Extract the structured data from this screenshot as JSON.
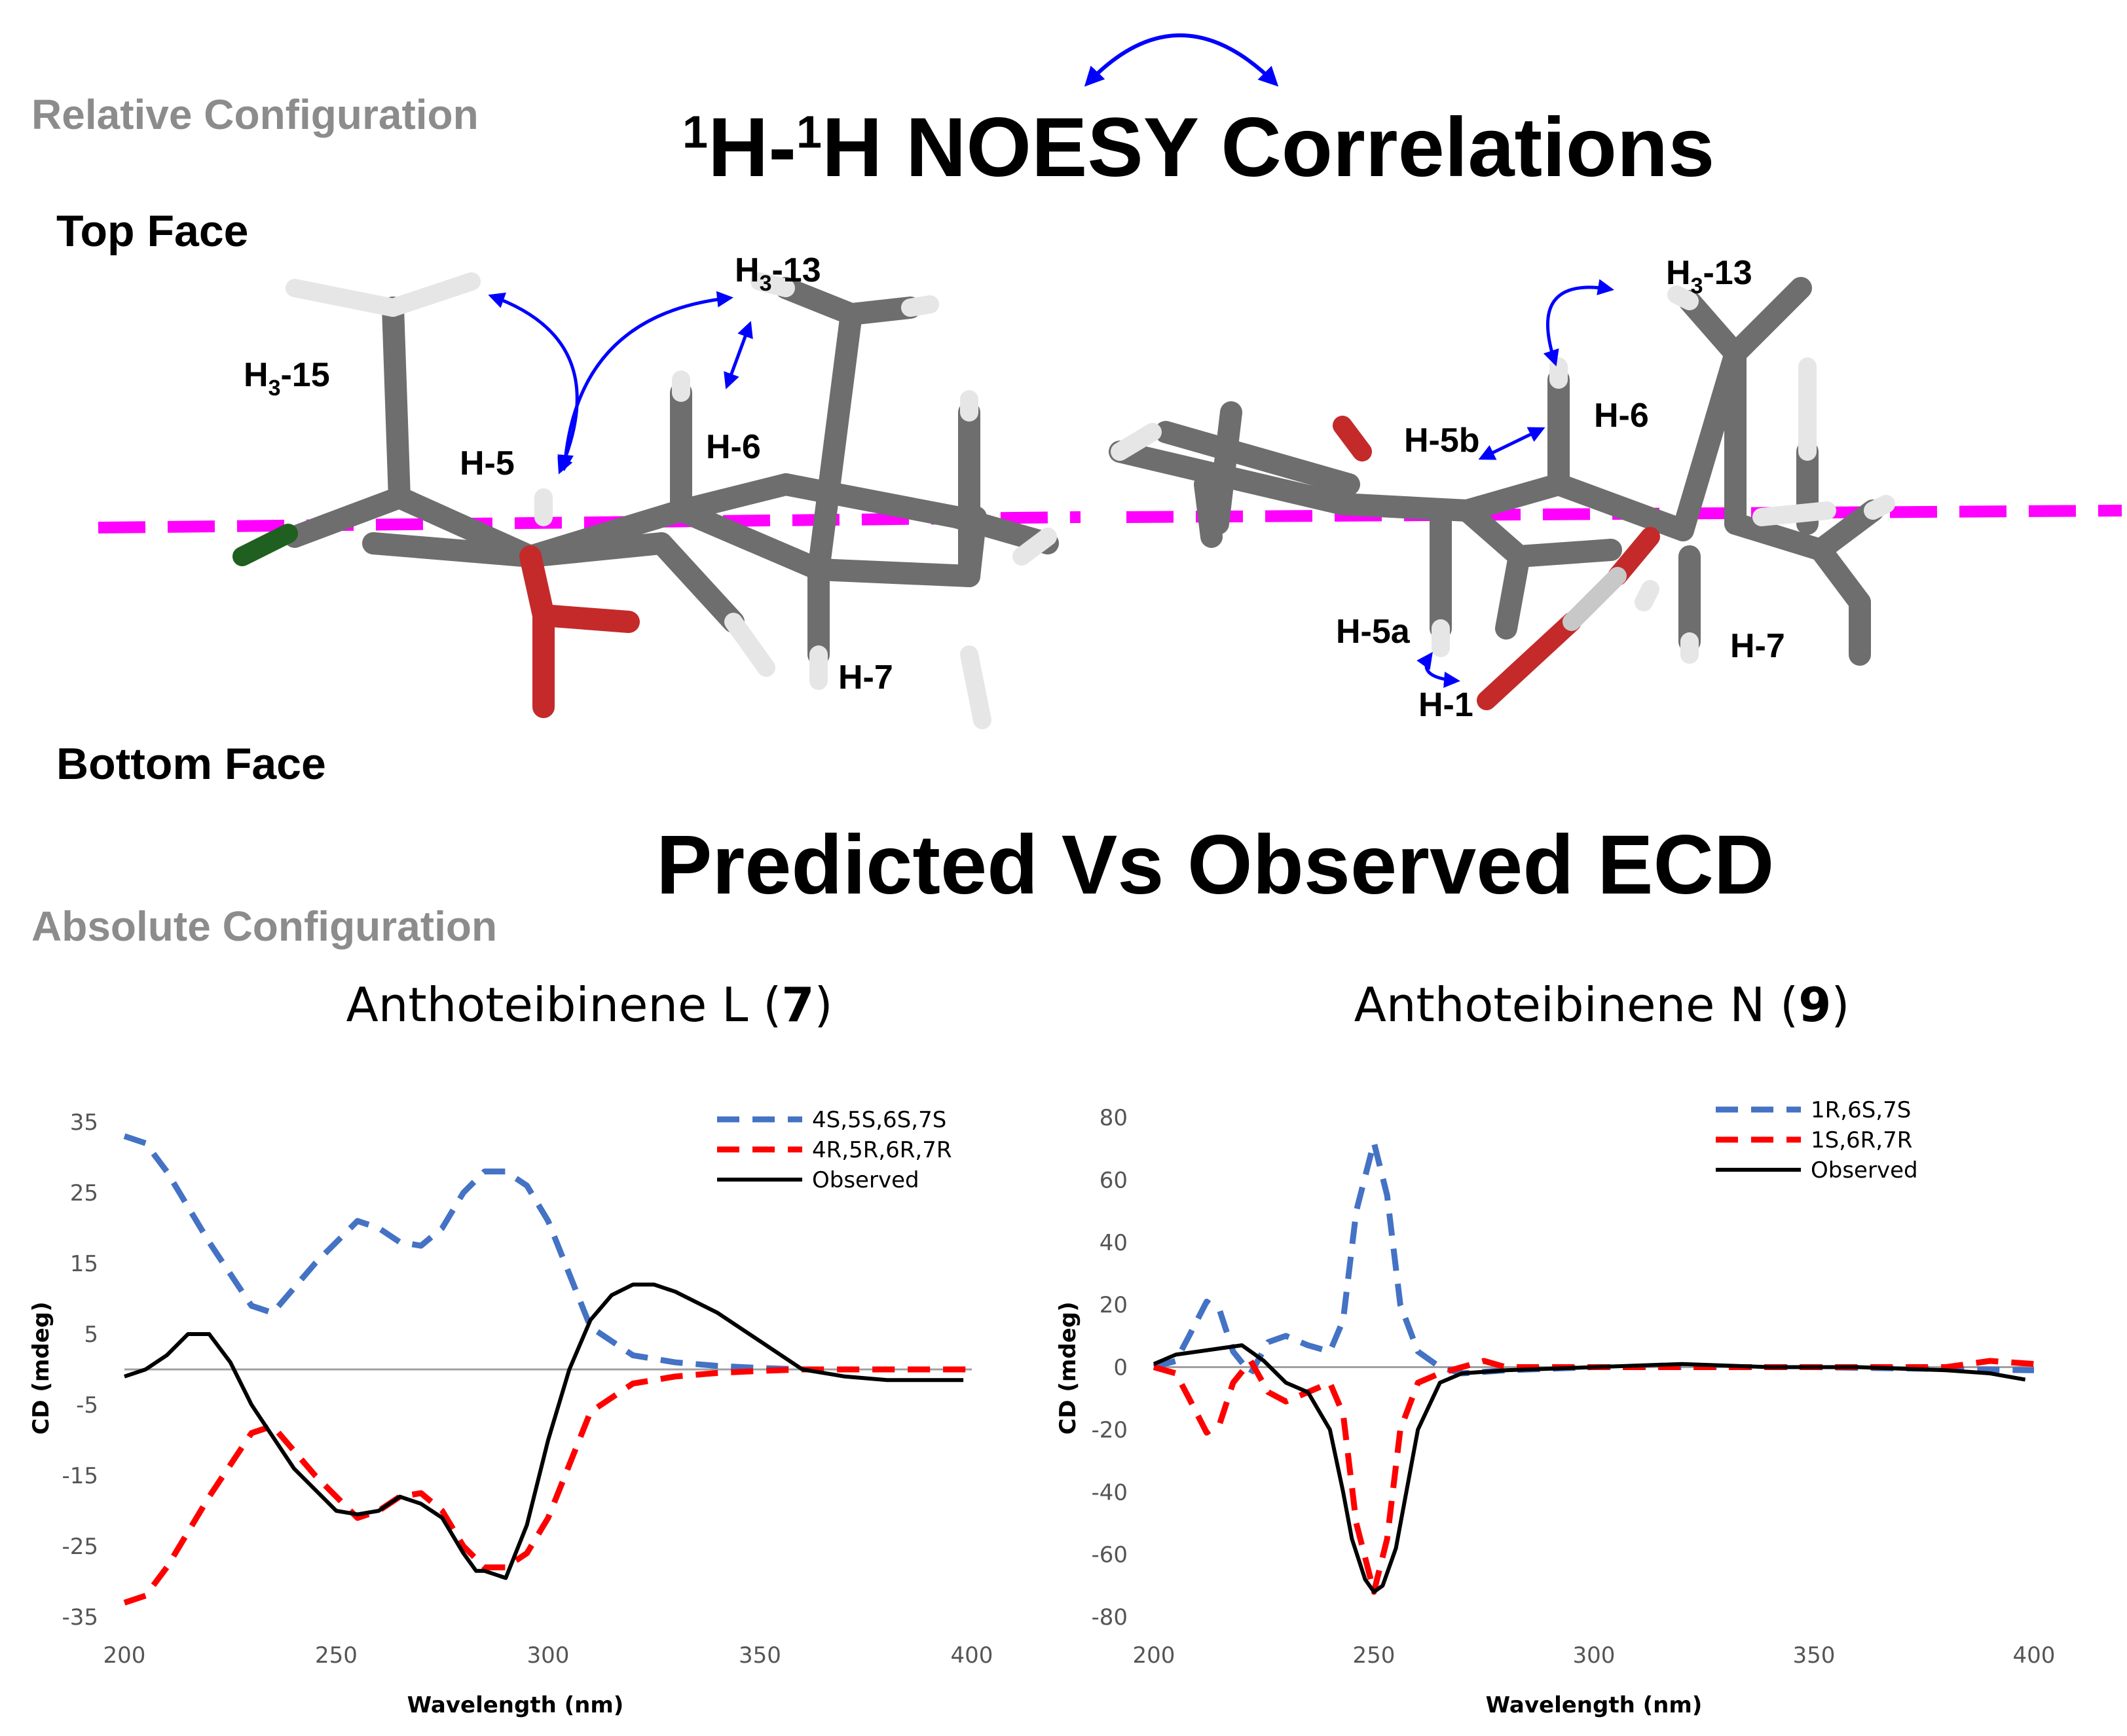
{
  "headings": {
    "relative": "Relative Configuration",
    "noesy_sup1": "1",
    "noesy_part1": "H-",
    "noesy_sup2": "1",
    "noesy_part2": "H NOESY Correlations",
    "top_face": "Top Face",
    "bottom_face": "Bottom Face",
    "ecd_title": "Predicted Vs Observed ECD",
    "absolute": "Absolute Configuration"
  },
  "labels_left": {
    "h3_15": [
      "H",
      "3",
      "-15"
    ],
    "h3_13": [
      "H",
      "3",
      "-13"
    ],
    "h5": "H-5",
    "h6": "H-6",
    "h7": "H-7"
  },
  "labels_right": {
    "h3_13": [
      "H",
      "3",
      "-13"
    ],
    "h6": "H-6",
    "h5b": "H-5b",
    "h5a": "H-5a",
    "h1": "H-1",
    "h7": "H-7"
  },
  "colors": {
    "blue_series": "#4472C4",
    "red_series": "#FF0000",
    "observed": "#000000",
    "noe_arrow": "#0000FF",
    "plane": "#FF00FF",
    "carbon": "#707070",
    "hydrogen": "#E8E8E8",
    "oxygen": "#CC2222",
    "headings_grey": "#8C8C8C"
  },
  "chart_data": [
    {
      "type": "line",
      "title_prefix": "Anthoteibinene  L (",
      "title_bold": "7",
      "title_suffix": ")",
      "xlabel": "Wavelength (nm)",
      "ylabel": "CD (mdeg)",
      "xlim": [
        200,
        400
      ],
      "ylim": [
        -35,
        35
      ],
      "xticks": [
        200,
        250,
        300,
        350,
        400
      ],
      "yticks": [
        35,
        25,
        15,
        5,
        -5,
        -15,
        -25,
        -35
      ],
      "legend_position": "top-right",
      "series": [
        {
          "name": "4S,5S,6S,7S",
          "style": "dashed",
          "color": "#4472C4",
          "x": [
            200,
            205,
            210,
            220,
            230,
            235,
            245,
            255,
            260,
            265,
            270,
            275,
            280,
            285,
            290,
            295,
            300,
            310,
            320,
            330,
            340,
            350,
            360,
            380,
            400
          ],
          "y": [
            33,
            32,
            28,
            18,
            9,
            8,
            15,
            21,
            20,
            18,
            17.5,
            20,
            25,
            28,
            28,
            26,
            21,
            6,
            2,
            1,
            0.5,
            0.2,
            0,
            0,
            0
          ]
        },
        {
          "name": "4R,5R,6R,7R",
          "style": "dashed",
          "color": "#FF0000",
          "x": [
            200,
            205,
            210,
            220,
            230,
            235,
            245,
            255,
            260,
            265,
            270,
            275,
            280,
            285,
            290,
            295,
            300,
            310,
            320,
            330,
            340,
            350,
            360,
            380,
            400
          ],
          "y": [
            -33,
            -32,
            -28,
            -18,
            -9,
            -8,
            -15,
            -21,
            -20,
            -18,
            -17.5,
            -20,
            -25,
            -28,
            -28,
            -26,
            -21,
            -6,
            -2,
            -1,
            -0.5,
            -0.2,
            0,
            0,
            0
          ]
        },
        {
          "name": "Observed",
          "style": "solid",
          "color": "#000000",
          "x": [
            200,
            205,
            210,
            215,
            220,
            225,
            230,
            240,
            250,
            255,
            260,
            265,
            270,
            275,
            280,
            283,
            285,
            290,
            295,
            300,
            305,
            310,
            315,
            320,
            325,
            330,
            340,
            350,
            360,
            370,
            380,
            390,
            398
          ],
          "y": [
            -1,
            0,
            2,
            5,
            5,
            1,
            -5,
            -14,
            -20,
            -20.5,
            -20,
            -18,
            -19,
            -21,
            -26,
            -28.5,
            -28.5,
            -29.5,
            -22,
            -10,
            0,
            7,
            10.5,
            12,
            12,
            11,
            8,
            4,
            0,
            -1,
            -1.5,
            -1.5,
            -1.5
          ]
        }
      ]
    },
    {
      "type": "line",
      "title_prefix": "Anthoteibinene N (",
      "title_bold": "9",
      "title_suffix": ")",
      "xlabel": "Wavelength (nm)",
      "ylabel": "CD (mdeg)",
      "xlim": [
        200,
        400
      ],
      "ylim": [
        -80,
        80
      ],
      "xticks": [
        200,
        250,
        300,
        350,
        400
      ],
      "yticks": [
        80,
        60,
        40,
        20,
        0,
        -20,
        -40,
        -60,
        -80
      ],
      "legend_position": "top-right",
      "series": [
        {
          "name": "1R,6S,7S",
          "style": "dashed",
          "color": "#4472C4",
          "x": [
            200,
            205,
            208,
            212,
            215,
            218,
            222,
            226,
            230,
            235,
            240,
            243,
            246,
            250,
            253,
            256,
            260,
            265,
            270,
            280,
            300,
            350,
            400
          ],
          "y": [
            0,
            2,
            10,
            21,
            18,
            5,
            -2,
            8,
            10,
            7,
            5,
            15,
            50,
            72,
            55,
            20,
            5,
            0,
            -2,
            -1,
            0,
            0,
            -1
          ]
        },
        {
          "name": "1S,6R,7R",
          "style": "dashed",
          "color": "#FF0000",
          "x": [
            200,
            205,
            208,
            212,
            215,
            218,
            222,
            226,
            230,
            235,
            240,
            243,
            246,
            250,
            253,
            256,
            260,
            265,
            270,
            275,
            280,
            300,
            350,
            380,
            390,
            400
          ],
          "y": [
            0,
            -2,
            -10,
            -21,
            -18,
            -5,
            2,
            -8,
            -11,
            -8,
            -5,
            -15,
            -50,
            -72,
            -55,
            -20,
            -5,
            -2,
            0,
            2,
            0,
            0,
            0,
            0,
            2,
            1
          ]
        },
        {
          "name": "Observed",
          "style": "solid",
          "color": "#000000",
          "x": [
            200,
            205,
            210,
            215,
            220,
            225,
            230,
            235,
            240,
            243,
            245,
            248,
            250,
            252,
            255,
            260,
            265,
            270,
            280,
            300,
            320,
            340,
            360,
            380,
            390,
            398
          ],
          "y": [
            1,
            4,
            5,
            6,
            7,
            2,
            -5,
            -8,
            -20,
            -40,
            -55,
            -68,
            -72,
            -70,
            -58,
            -20,
            -5,
            -2,
            -1,
            0,
            1,
            0,
            0,
            -1,
            -2,
            -4
          ]
        }
      ]
    }
  ]
}
